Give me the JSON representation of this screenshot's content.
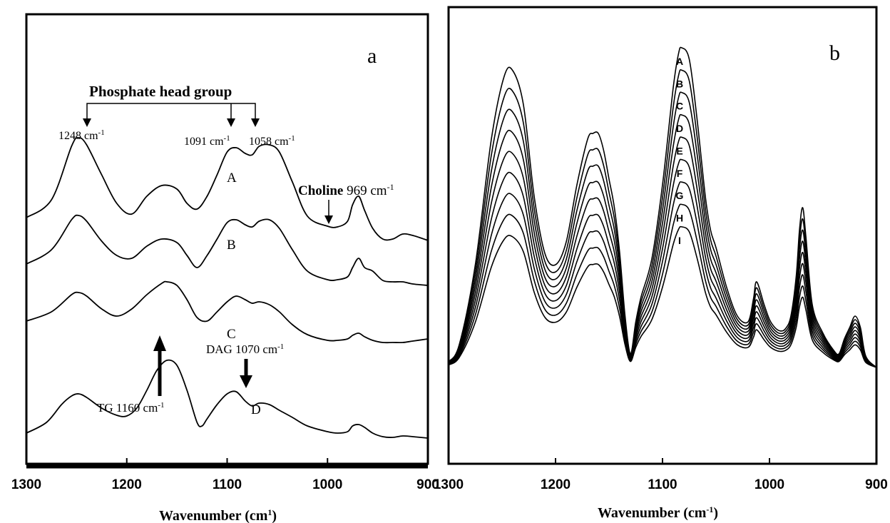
{
  "colors": {
    "ink": "#000000",
    "paper": "#ffffff"
  },
  "chart_data": [
    {
      "type": "line",
      "panel_label": "a",
      "xlabel": "Wavenumber (cm",
      "xlabel_sup": "1",
      "xlabel_tail": ")",
      "xlim": [
        1300,
        900
      ],
      "x_reversed": true,
      "y_ticks_shown": false,
      "x_ticks": [
        1300,
        1200,
        1100,
        1000,
        900
      ],
      "x_tick_labels": [
        "1300",
        "1200",
        "1100",
        "1000",
        "900"
      ],
      "annotations": {
        "group_title": "Phosphate head group",
        "peak_1248": "1248 cm",
        "peak_1091": "1091 cm",
        "peak_1058": "1058 cm",
        "choline_bold": "Choline",
        "choline_value": " 969 cm",
        "tg": "TG 1160 cm",
        "dag": "DAG 1070 cm",
        "sup_minus1": "-1"
      },
      "series": [
        {
          "name": "A",
          "x": [
            1300,
            1275,
            1255,
            1248,
            1240,
            1225,
            1210,
            1195,
            1180,
            1165,
            1150,
            1140,
            1130,
            1120,
            1110,
            1100,
            1091,
            1082,
            1075,
            1068,
            1058,
            1048,
            1035,
            1020,
            1000,
            990,
            980,
            975,
            969,
            963,
            955,
            945,
            935,
            925,
            915,
            900
          ],
          "y": [
            0.6,
            0.85,
            1.6,
            1.72,
            1.62,
            1.2,
            0.8,
            0.65,
            0.9,
            1.05,
            1.0,
            0.8,
            0.72,
            0.9,
            1.2,
            1.52,
            1.58,
            1.5,
            1.48,
            1.6,
            1.62,
            1.52,
            1.1,
            0.62,
            0.48,
            0.47,
            0.55,
            0.78,
            0.9,
            0.7,
            0.45,
            0.3,
            0.3,
            0.37,
            0.35,
            0.28
          ]
        },
        {
          "name": "B",
          "x": [
            1300,
            1275,
            1255,
            1248,
            1240,
            1225,
            1210,
            1195,
            1180,
            1165,
            1150,
            1140,
            1130,
            1120,
            1110,
            1100,
            1091,
            1082,
            1075,
            1068,
            1058,
            1048,
            1035,
            1020,
            1000,
            990,
            980,
            975,
            969,
            963,
            955,
            945,
            935,
            925,
            915,
            900
          ],
          "y": [
            0.6,
            0.8,
            1.22,
            1.28,
            1.2,
            0.92,
            0.72,
            0.68,
            0.85,
            0.95,
            0.9,
            0.72,
            0.55,
            0.72,
            0.95,
            1.18,
            1.22,
            1.15,
            1.12,
            1.2,
            1.22,
            1.1,
            0.8,
            0.5,
            0.38,
            0.38,
            0.42,
            0.55,
            0.68,
            0.55,
            0.5,
            0.37,
            0.35,
            0.35,
            0.32,
            0.3
          ]
        },
        {
          "name": "C",
          "x": [
            1300,
            1275,
            1255,
            1248,
            1240,
            1225,
            1210,
            1195,
            1180,
            1165,
            1160,
            1150,
            1140,
            1130,
            1120,
            1110,
            1100,
            1091,
            1082,
            1075,
            1068,
            1058,
            1048,
            1035,
            1020,
            1000,
            990,
            980,
            975,
            969,
            963,
            955,
            945,
            935,
            925,
            915,
            900
          ],
          "y": [
            0.55,
            0.68,
            0.92,
            0.95,
            0.9,
            0.72,
            0.62,
            0.72,
            0.92,
            1.08,
            1.1,
            1.05,
            0.85,
            0.6,
            0.55,
            0.68,
            0.82,
            0.9,
            0.85,
            0.8,
            0.82,
            0.78,
            0.68,
            0.5,
            0.36,
            0.28,
            0.28,
            0.3,
            0.35,
            0.38,
            0.33,
            0.28,
            0.25,
            0.25,
            0.25,
            0.27,
            0.3
          ]
        },
        {
          "name": "D",
          "x": [
            1300,
            1280,
            1265,
            1255,
            1248,
            1240,
            1225,
            1210,
            1200,
            1190,
            1180,
            1170,
            1160,
            1150,
            1140,
            1130,
            1125,
            1120,
            1110,
            1100,
            1091,
            1082,
            1075,
            1068,
            1058,
            1048,
            1035,
            1020,
            1000,
            990,
            980,
            975,
            969,
            963,
            955,
            945,
            935,
            925,
            915,
            900
          ],
          "y": [
            0.1,
            0.25,
            0.5,
            0.62,
            0.65,
            0.6,
            0.45,
            0.35,
            0.34,
            0.45,
            0.7,
            0.98,
            1.12,
            1.05,
            0.7,
            0.25,
            0.2,
            0.3,
            0.5,
            0.65,
            0.68,
            0.55,
            0.48,
            0.52,
            0.5,
            0.42,
            0.32,
            0.2,
            0.12,
            0.1,
            0.12,
            0.2,
            0.22,
            0.18,
            0.1,
            0.05,
            0.04,
            0.06,
            0.05,
            0.03
          ]
        }
      ],
      "curve_labels": [
        "A",
        "B",
        "C",
        "D"
      ]
    },
    {
      "type": "line",
      "panel_label": "b",
      "xlabel": "Wavenumber (cm",
      "xlabel_sup": "-1",
      "xlabel_tail": ")",
      "xlim": [
        1300,
        900
      ],
      "x_reversed": true,
      "y_ticks_shown": false,
      "x_ticks": [
        1300,
        1200,
        1100,
        1000,
        900
      ],
      "x_tick_labels": [
        "1300",
        "1200",
        "1100",
        "1000",
        "900"
      ],
      "shared_x": [
        1300,
        1290,
        1275,
        1260,
        1248,
        1240,
        1230,
        1220,
        1210,
        1200,
        1190,
        1180,
        1170,
        1165,
        1160,
        1155,
        1150,
        1145,
        1140,
        1135,
        1130,
        1125,
        1120,
        1110,
        1100,
        1090,
        1085,
        1082,
        1075,
        1068,
        1060,
        1055,
        1050,
        1040,
        1030,
        1020,
        1015,
        1012,
        1005,
        1000,
        995,
        990,
        985,
        980,
        975,
        972,
        969,
        966,
        960,
        950,
        940,
        935,
        930,
        925,
        920,
        915,
        910,
        900
      ],
      "shared_y_base": [
        0.05,
        0.2,
        0.9,
        2.0,
        2.55,
        2.6,
        2.3,
        1.5,
        1.0,
        0.9,
        1.1,
        1.6,
        2.0,
        2.05,
        2.05,
        1.9,
        1.65,
        1.4,
        1.0,
        0.45,
        0.12,
        0.4,
        0.62,
        0.95,
        1.6,
        2.45,
        2.75,
        2.8,
        2.7,
        2.2,
        1.5,
        1.2,
        1.05,
        0.7,
        0.45,
        0.4,
        0.6,
        0.75,
        0.55,
        0.42,
        0.35,
        0.32,
        0.34,
        0.45,
        0.8,
        1.2,
        1.4,
        1.15,
        0.55,
        0.3,
        0.15,
        0.12,
        0.25,
        0.35,
        0.45,
        0.35,
        0.1,
        0.0
      ],
      "series_scales": [
        1.0,
        0.93,
        0.86,
        0.79,
        0.72,
        0.65,
        0.58,
        0.51,
        0.44
      ],
      "curve_labels": [
        "A",
        "B",
        "C",
        "D",
        "E",
        "F",
        "G",
        "H",
        "I"
      ]
    }
  ]
}
